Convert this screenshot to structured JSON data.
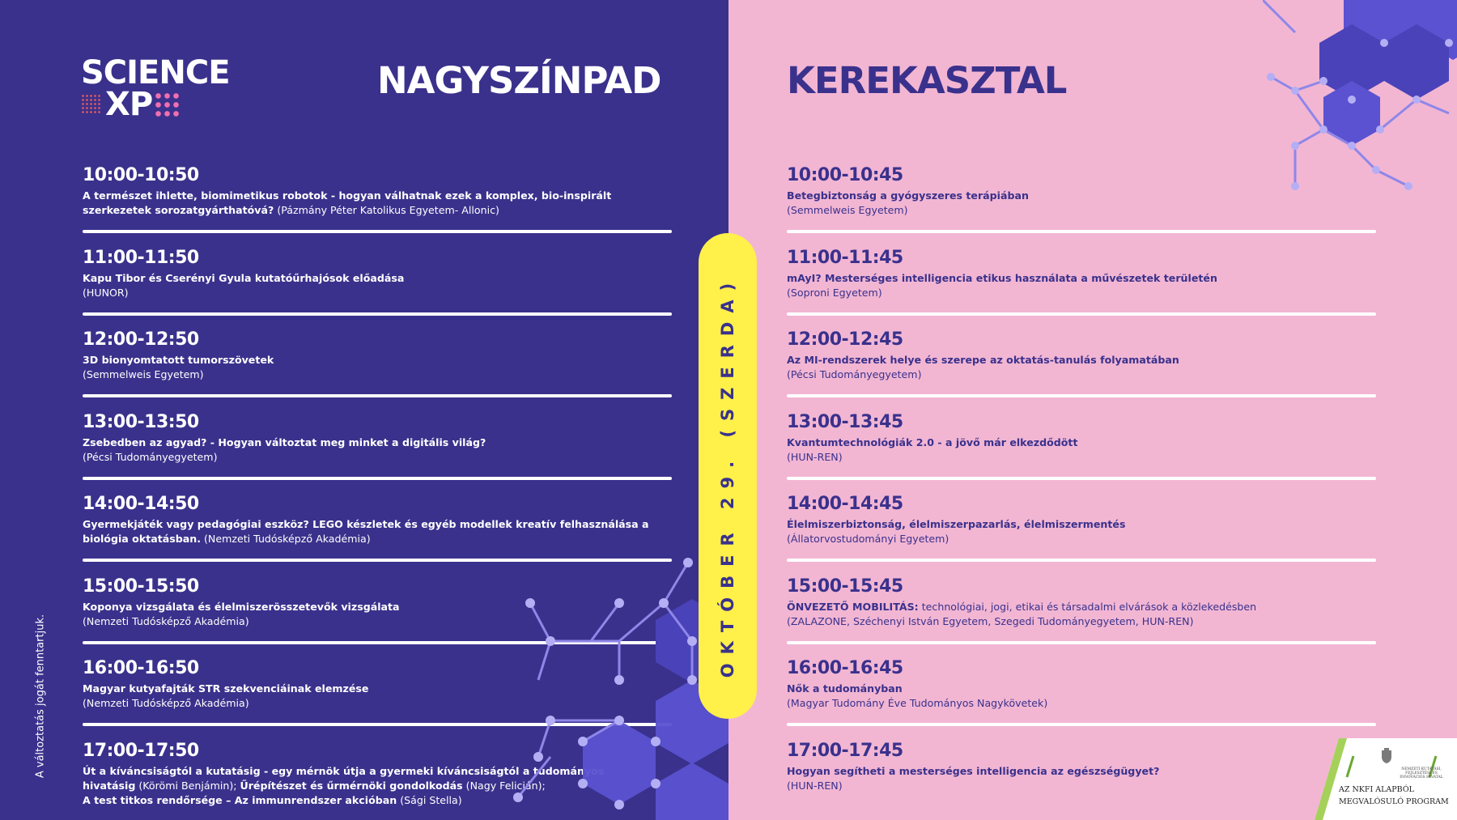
{
  "logo": {
    "line1": "SCIENCE",
    "line2": "XP"
  },
  "left_stage": {
    "title": "NAGYSZÍNPAD",
    "sessions": [
      {
        "time": "10:00-10:50",
        "title": "A természet ihlette, biomimetikus robotok - hogyan válhatnak ezek a komplex, bio-inspirált szerkezetek sorozatgyárthatóvá?",
        "org": "(Pázmány Péter Katolikus Egyetem- Allonic)"
      },
      {
        "time": "11:00-11:50",
        "title": "Kapu Tibor és Cserényi Gyula kutatóűrhajósok előadása",
        "org": "(HUNOR)"
      },
      {
        "time": "12:00-12:50",
        "title": "3D bionyomtatott tumorszövetek",
        "org": "(Semmelweis Egyetem)"
      },
      {
        "time": "13:00-13:50",
        "title": "Zsebedben az agyad? - Hogyan változtat meg minket a digitális világ?",
        "org": "(Pécsi Tudományegyetem)"
      },
      {
        "time": "14:00-14:50",
        "title": "Gyermekjáték vagy pedagógiai eszköz? LEGO készletek és egyéb modellek kreatív felhasználása a biológia oktatásban.",
        "org": "(Nemzeti Tudósképző Akadémia)"
      },
      {
        "time": "15:00-15:50",
        "title": "Koponya vizsgálata és élelmiszerösszetevők vizsgálata",
        "org": "(Nemzeti Tudósképző Akadémia)"
      },
      {
        "time": "16:00-16:50",
        "title": "Magyar kutyafajták STR szekvenciáinak elemzése",
        "org": "(Nemzeti Tudósképző Akadémia)"
      }
    ],
    "last_session": {
      "time": "17:00-17:50",
      "parts": [
        {
          "title": "Út a kíváncsiságtól a kutatásig - egy mérnök útja a gyermeki kíváncsiságtól a tudományos hivatásig",
          "org": "(Körömi Benjámin);"
        },
        {
          "title": "Űrépítészet és űrmérnöki gondolkodás",
          "org": "(Nagy Felicián);"
        },
        {
          "title": "A test titkos rendőrsége – Az immunrendszer akcióban",
          "org": "(Sági Stella)"
        }
      ]
    }
  },
  "right_stage": {
    "title": "KEREKASZTAL",
    "sessions": [
      {
        "time": "10:00-10:45",
        "title": "Betegbiztonság a gyógyszeres terápiában",
        "org": "(Semmelweis Egyetem)"
      },
      {
        "time": "11:00-11:45",
        "title": "mAyI? Mesterséges intelligencia etikus használata a művészetek területén",
        "org": "(Soproni Egyetem)"
      },
      {
        "time": "12:00-12:45",
        "title": "Az MI-rendszerek helye és szerepe az oktatás-tanulás folyamatában",
        "org": "(Pécsi Tudományegyetem)"
      },
      {
        "time": "13:00-13:45",
        "title": "Kvantumtechnológiák 2.0 - a jövő már elkezdődött",
        "org": "(HUN-REN)"
      },
      {
        "time": "14:00-14:45",
        "title": "Élelmiszerbiztonság, élelmiszerpazarlás, élelmiszermentés",
        "org": "(Állatorvostudományi Egyetem)"
      },
      {
        "time": "15:00-15:45",
        "title": "ÖNVEZETŐ MOBILITÁS:",
        "title_rest": "technológiai, jogi, etikai és társadalmi elvárások a közlekedésben",
        "org": "(ZALAZONE, Széchenyi István Egyetem, Szegedi Tudományegyetem, HUN-REN)"
      },
      {
        "time": "16:00-16:45",
        "title": "Nők a tudományban",
        "org": "(Magyar Tudomány Éve Tudományos Nagykövetek)"
      },
      {
        "time": "17:00-17:45",
        "title": "Hogyan segítheti a mesterséges intelligencia az egészségügyet?",
        "org": "(HUN-REN)"
      }
    ]
  },
  "date_pill": "OKTÓBER 29. (SZERDA)",
  "side_note": "A változtatás jogát fenntartjuk.",
  "badge": {
    "line1": "AZ NKFI ALAPBÓL",
    "line2": "MEGVALÓSULÓ PROGRAM",
    "small": "Nemzeti Kutatási, Fejlesztési és Innovációs Hivatal"
  },
  "colors": {
    "left_bg": "#3a318c",
    "right_bg": "#f2b6d3",
    "pill": "#fff04a",
    "accent_pink": "#f06fb0"
  }
}
